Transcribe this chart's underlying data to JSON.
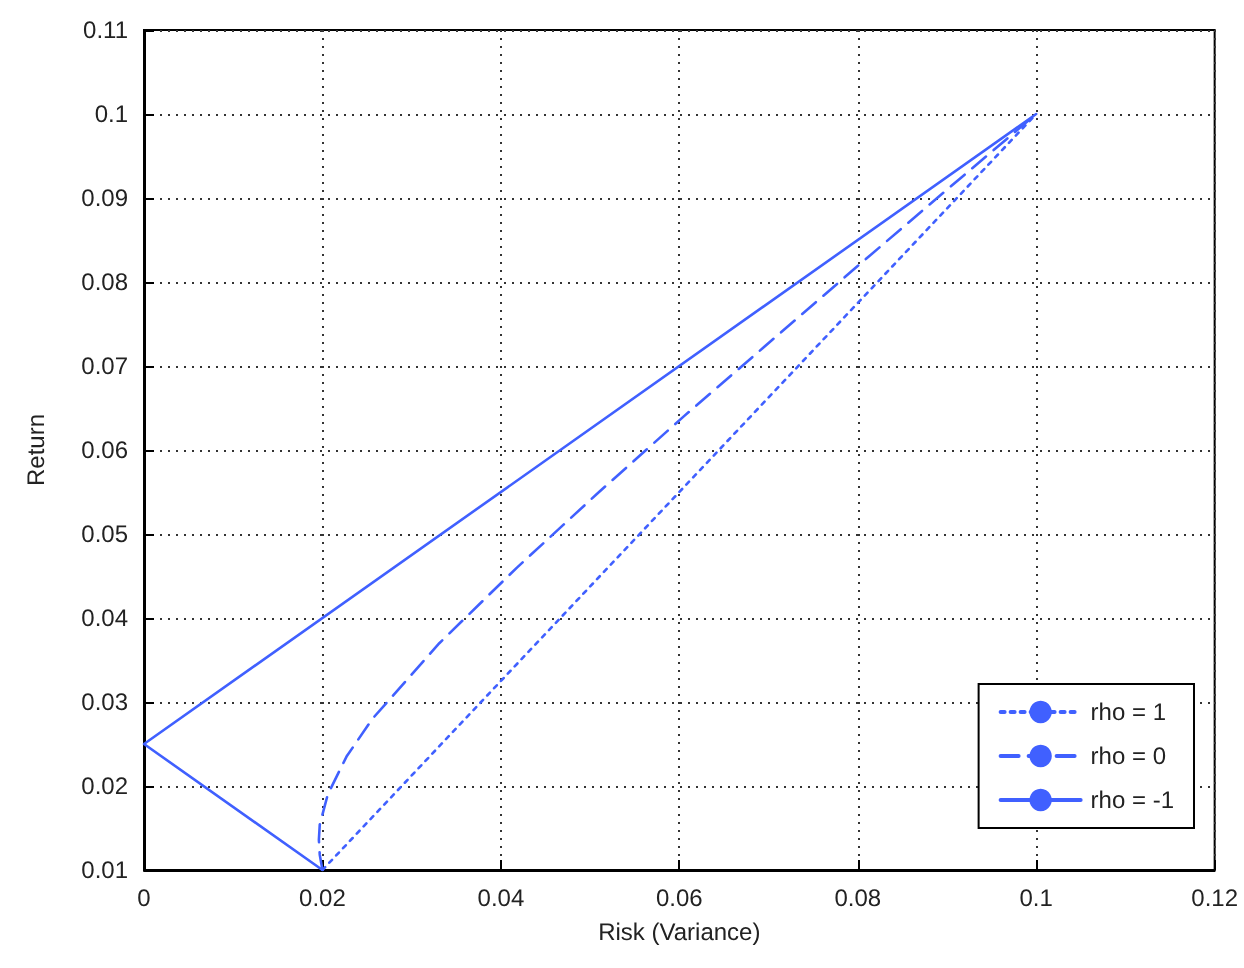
{
  "chart_data": {
    "type": "line",
    "xlabel": "Risk (Variance)",
    "ylabel": "Return",
    "xlim": [
      0,
      0.12
    ],
    "xticks": [
      0,
      0.02,
      0.04,
      0.06,
      0.08,
      0.1,
      0.12
    ],
    "ylim": [
      0.01,
      0.11
    ],
    "yticks": [
      0.01,
      0.02,
      0.03,
      0.04,
      0.05,
      0.06,
      0.07,
      0.08,
      0.09,
      0.1,
      0.11
    ],
    "grid": true,
    "legend": "bottom right",
    "marker": "none",
    "series": [
      {
        "name": "rho = 1",
        "color": "#4060ff",
        "line_style": "dotted",
        "x": [
          0.02,
          0.1
        ],
        "values": [
          0.01,
          0.1
        ]
      },
      {
        "name": "rho = 0",
        "color": "#4060ff",
        "line_style": "dashed",
        "x": [
          0.02,
          0.0197,
          0.0196,
          0.0197,
          0.0206,
          0.0227,
          0.0256,
          0.0331,
          0.0418,
          0.051,
          0.0605,
          0.0703,
          0.0801,
          0.09,
          0.1
        ],
        "values": [
          0.01,
          0.0118,
          0.0136,
          0.0154,
          0.019,
          0.0235,
          0.028,
          0.037,
          0.046,
          0.055,
          0.064,
          0.073,
          0.082,
          0.091,
          0.1
        ]
      },
      {
        "name": "rho = -1",
        "color": "#4060ff",
        "line_style": "solid",
        "x": [
          0.02,
          0,
          0.1
        ],
        "values": [
          0.01,
          0.025,
          0.1
        ]
      }
    ]
  }
}
